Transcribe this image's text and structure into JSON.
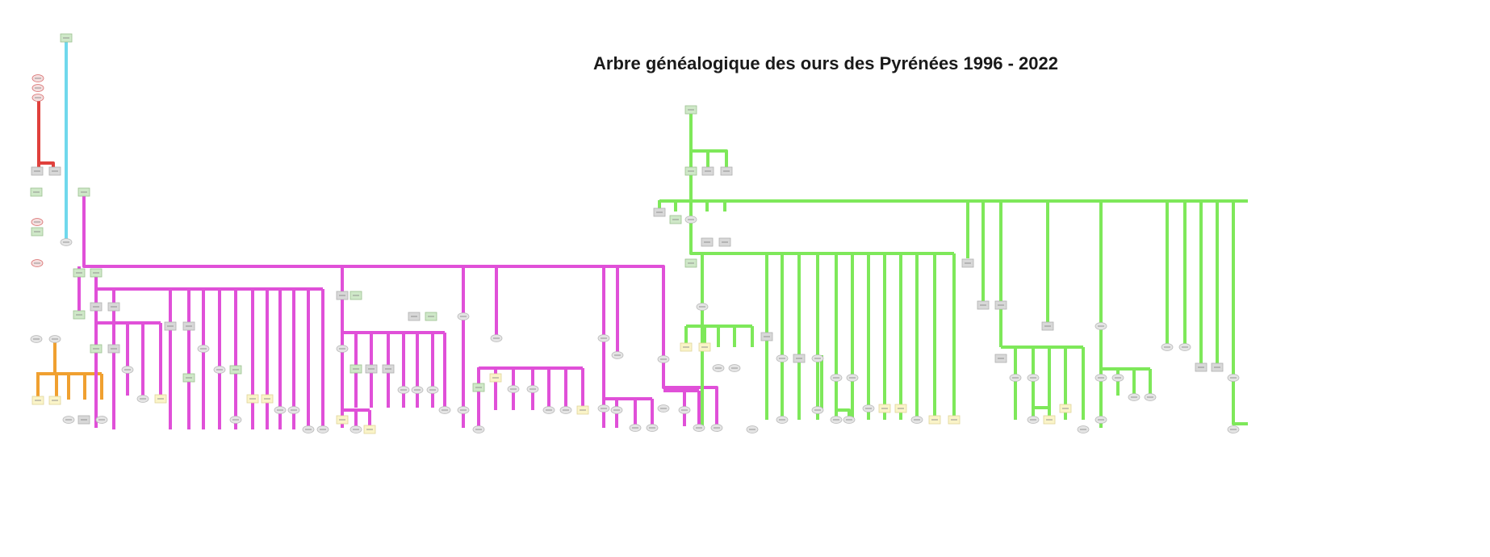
{
  "title": "Arbre généalogique des ours des Pyrénées 1996 - 2022",
  "colors": {
    "orange": "#f0a030",
    "red": "#e0403c",
    "cyan": "#70d8ec",
    "magenta": "#e050d8",
    "green": "#7ee85a",
    "founder_fill": "#cfe8c8",
    "male_fill": "#d8d8d8",
    "female_fill": "#e4e4e4",
    "cub_fill": "#faf4c8"
  },
  "families": [
    {
      "name": "orange-family",
      "color": "orange"
    },
    {
      "name": "red-family",
      "color": "red"
    },
    {
      "name": "cyan-family",
      "color": "cyan"
    },
    {
      "name": "magenta-family",
      "color": "magenta"
    },
    {
      "name": "green-family",
      "color": "green"
    }
  ]
}
